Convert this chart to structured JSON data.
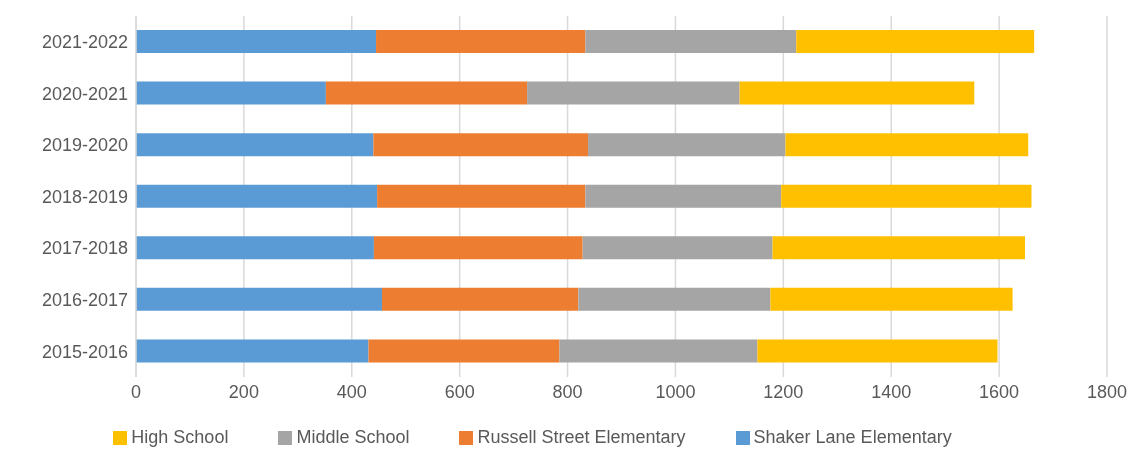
{
  "chart_data": {
    "type": "bar",
    "orientation": "horizontal",
    "stacked": true,
    "categories": [
      "2021-2022",
      "2020-2021",
      "2019-2020",
      "2018-2019",
      "2017-2018",
      "2016-2017",
      "2015-2016"
    ],
    "series": [
      {
        "name": "Shaker Lane Elementary",
        "color": "#5b9bd5",
        "values": [
          445,
          352,
          440,
          447,
          441,
          456,
          431
        ]
      },
      {
        "name": "Russell Street Elementary",
        "color": "#ed7d31",
        "values": [
          388,
          373,
          398,
          386,
          387,
          364,
          354
        ]
      },
      {
        "name": "Middle School",
        "color": "#a5a5a5",
        "values": [
          391,
          394,
          366,
          363,
          352,
          356,
          367
        ]
      },
      {
        "name": "High School",
        "color": "#ffc000",
        "values": [
          441,
          435,
          450,
          464,
          468,
          449,
          445
        ]
      }
    ],
    "xlim": [
      0,
      1800
    ],
    "xticks": [
      0,
      200,
      400,
      600,
      800,
      1000,
      1200,
      1400,
      1600,
      1800
    ],
    "grid": "x",
    "legend": "bottom"
  }
}
